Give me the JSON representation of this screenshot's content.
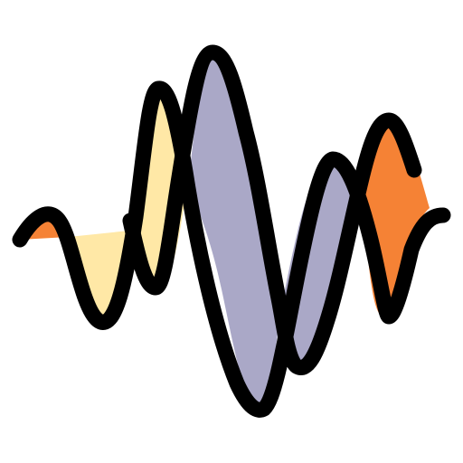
{
  "icon": {
    "name": "sound-wave-icon",
    "colors": {
      "stroke": "#000000",
      "orange": "#F58235",
      "cream": "#FFE8A6",
      "lavender": "#AAA8C7",
      "background": "#FFFFFF"
    }
  }
}
